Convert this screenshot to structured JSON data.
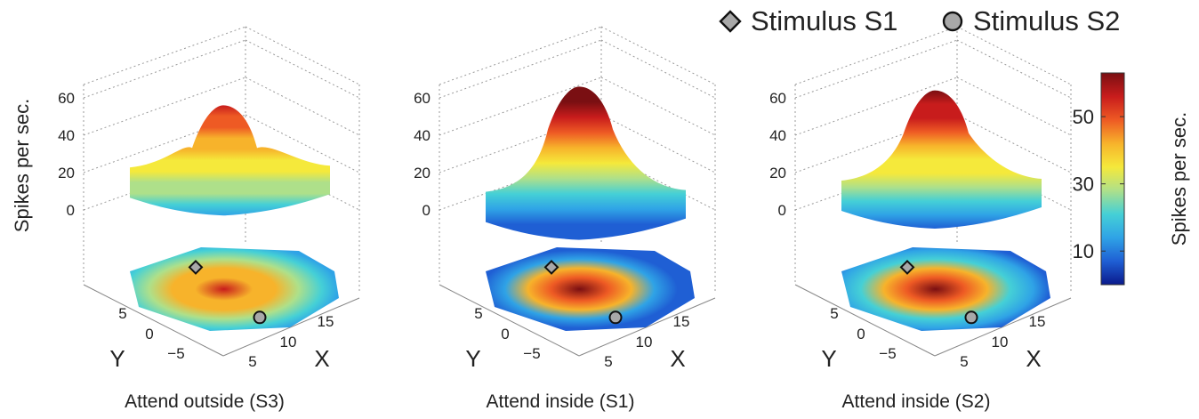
{
  "legend": {
    "s1_label": "Stimulus S1",
    "s2_label": "Stimulus S2",
    "s1_marker": "diamond",
    "s2_marker": "circle",
    "marker_fill": "#a8a8a8"
  },
  "colorbar": {
    "label": "Spikes per sec.",
    "ticks": [
      10,
      30,
      50
    ],
    "range": [
      0,
      63
    ],
    "colors": [
      "#0a1a8c",
      "#1f5fd4",
      "#2fa3e6",
      "#45d0d6",
      "#aee08a",
      "#f5e93b",
      "#f7b32b",
      "#ee5a24",
      "#c81c1c",
      "#7a0f12"
    ]
  },
  "chart_data": [
    {
      "type": "surface3d",
      "title": "Attend outside (S3)",
      "zlabel": "Spikes per sec.",
      "zticks": [
        0,
        20,
        40,
        60
      ],
      "xlabel": "X",
      "ylabel": "Y",
      "xticks": [
        5,
        10,
        15
      ],
      "yticks": [
        5,
        0,
        -5
      ],
      "peak_rate": 56,
      "baseline_rate": 17,
      "stimulus_s1": {
        "x": 9,
        "y": 3
      },
      "stimulus_s2": {
        "x": 13,
        "y": -3
      }
    },
    {
      "type": "surface3d",
      "title": "Attend inside (S1)",
      "zlabel": "",
      "zticks": [
        0,
        20,
        40,
        60
      ],
      "xlabel": "X",
      "ylabel": "Y",
      "xticks": [
        5,
        10,
        15
      ],
      "yticks": [
        5,
        0,
        -5
      ],
      "peak_rate": 66,
      "baseline_rate": 4,
      "stimulus_s1": {
        "x": 9,
        "y": 3
      },
      "stimulus_s2": {
        "x": 13,
        "y": -3
      }
    },
    {
      "type": "surface3d",
      "title": "Attend inside (S2)",
      "zlabel": "",
      "zticks": [
        0,
        20,
        40,
        60
      ],
      "xlabel": "X",
      "ylabel": "Y",
      "xticks": [
        5,
        10,
        15
      ],
      "yticks": [
        5,
        0,
        -5
      ],
      "peak_rate": 64,
      "baseline_rate": 10,
      "stimulus_s1": {
        "x": 9,
        "y": 3
      },
      "stimulus_s2": {
        "x": 13,
        "y": -3
      }
    }
  ]
}
